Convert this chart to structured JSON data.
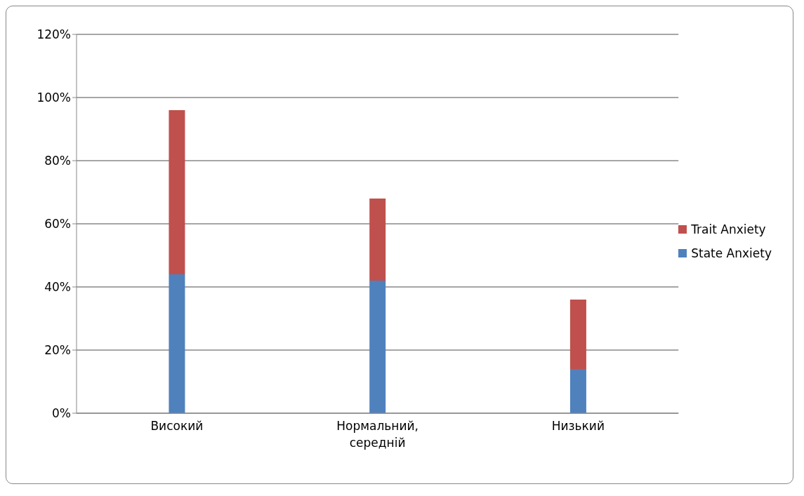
{
  "chart_data": {
    "type": "bar",
    "stacked": true,
    "categories": [
      "Високий",
      "Нормальний, середній",
      "Низький"
    ],
    "series": [
      {
        "name": "State Anxiety",
        "color": "#4f81bd",
        "values": [
          44,
          42,
          14
        ]
      },
      {
        "name": "Trait Anxiety",
        "color": "#c0504d",
        "values": [
          52,
          26,
          22
        ]
      }
    ],
    "ylim": [
      0,
      120
    ],
    "yticks": [
      {
        "value": 0,
        "label": "0%"
      },
      {
        "value": 20,
        "label": "20%"
      },
      {
        "value": 40,
        "label": "40%"
      },
      {
        "value": 60,
        "label": "60%"
      },
      {
        "value": 80,
        "label": "80%"
      },
      {
        "value": 100,
        "label": "100%"
      },
      {
        "value": 120,
        "label": "120%"
      }
    ],
    "grid": "y",
    "legend": "right"
  }
}
